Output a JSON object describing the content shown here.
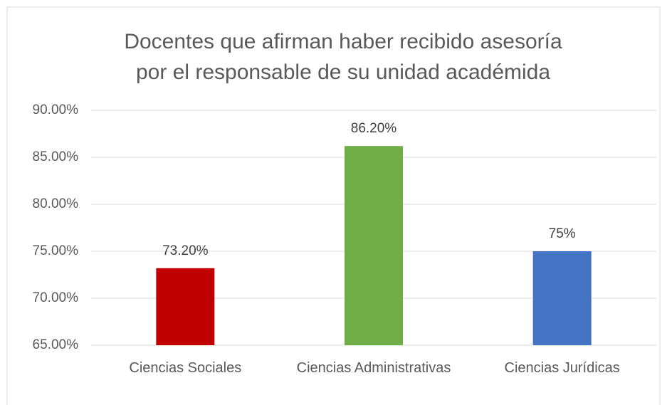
{
  "chart_data": {
    "type": "bar",
    "title": [
      "Docentes que afirman haber recibido asesoría",
      "por el responsable de su unidad académida"
    ],
    "categories": [
      "Ciencias Sociales",
      "Ciencias Administrativas",
      "Ciencias Jurídicas"
    ],
    "values": [
      73.2,
      86.2,
      75
    ],
    "value_labels": [
      "73.20%",
      "86.20%",
      "75%"
    ],
    "colors": [
      "#c00000",
      "#70ad47",
      "#4472c4"
    ],
    "ylim": [
      65,
      90
    ],
    "yticks": [
      {
        "value": 65,
        "label": "65.00%"
      },
      {
        "value": 70,
        "label": "70.00%"
      },
      {
        "value": 75,
        "label": "75.00%"
      },
      {
        "value": 80,
        "label": "80.00%"
      },
      {
        "value": 85,
        "label": "85.00%"
      },
      {
        "value": 90,
        "label": "90.00%"
      }
    ],
    "grid": true
  }
}
